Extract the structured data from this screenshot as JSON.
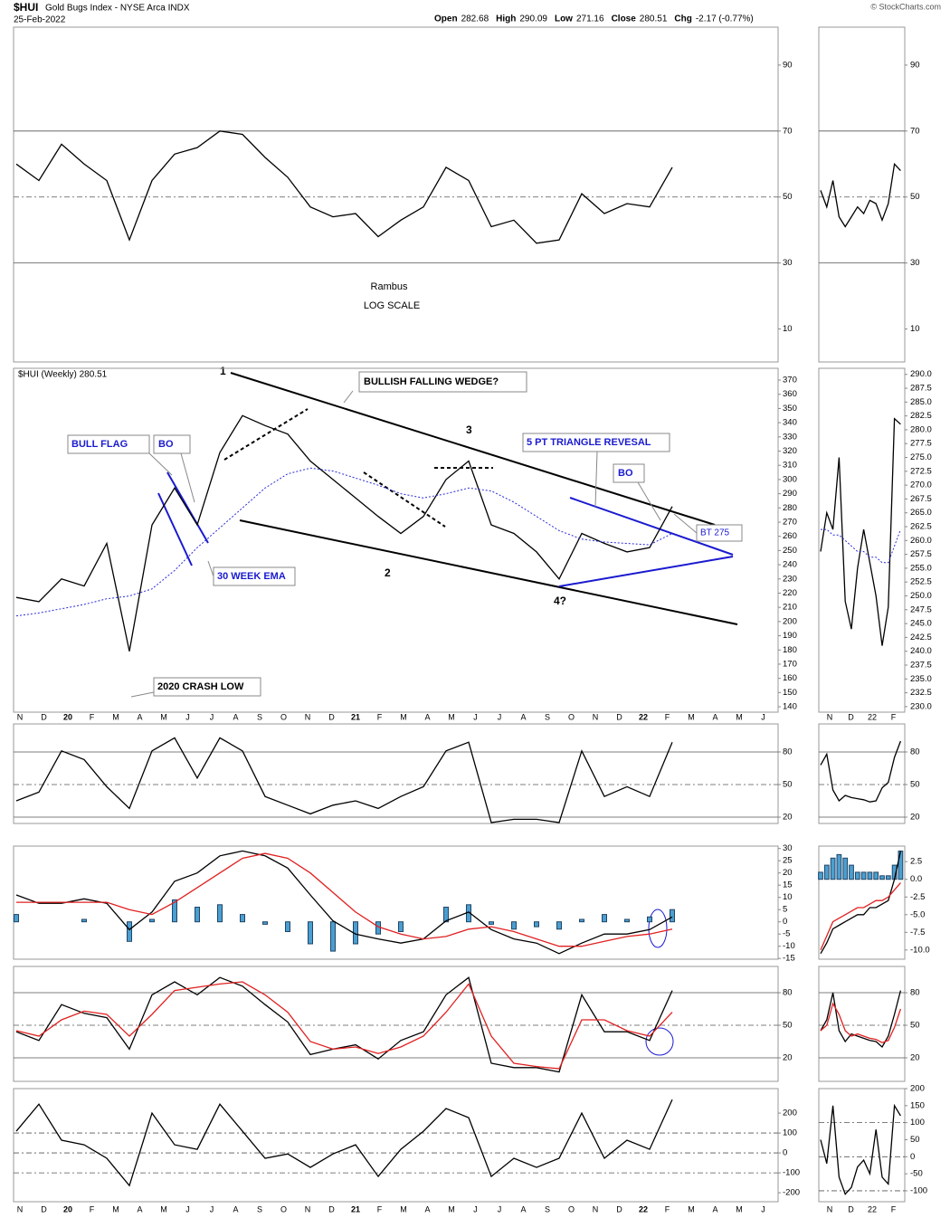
{
  "header": {
    "symbol": "$HUI",
    "name": "Gold Bugs Index - NYSE Arca INDX",
    "date": "25-Feb-2022",
    "copyright": "© StockCharts.com",
    "quote": [
      {
        "label": "Open",
        "value": 282.68
      },
      {
        "label": "High",
        "value": 290.09
      },
      {
        "label": "Low",
        "value": 271.16
      },
      {
        "label": "Close",
        "value": 280.51
      },
      {
        "label": "Chg",
        "value": "-2.17 (-0.77%)"
      }
    ],
    "legend": "$HUI (Weekly) 280.51"
  },
  "annotations": {
    "author": "Rambus",
    "scale": "LOG SCALE",
    "wedge": "BULLISH FALLING WEDGE?",
    "bull_flag": "BULL FLAG",
    "bo1": "BO",
    "ema": "30 WEEK EMA",
    "crash": "2020 CRASH LOW",
    "triangle": "5 PT TRIANGLE REVESAL",
    "bo2": "BO",
    "bt": "BT 275",
    "p1": "1",
    "p2": "2",
    "p3": "3",
    "p4": "4?"
  },
  "x_axis": {
    "months": [
      "N",
      "D",
      "20",
      "F",
      "M",
      "A",
      "M",
      "J",
      "J",
      "A",
      "S",
      "O",
      "N",
      "D",
      "21",
      "F",
      "M",
      "A",
      "M",
      "J",
      "J",
      "A",
      "S",
      "O",
      "N",
      "D",
      "22",
      "F",
      "M",
      "A",
      "M",
      "J"
    ],
    "mini_months": [
      "N",
      "D",
      "22",
      "F"
    ]
  },
  "panels": [
    {
      "ylim": [
        0,
        101.5
      ],
      "yticks": [
        10,
        30,
        50,
        70,
        90
      ],
      "grid": {
        "solid": [
          70,
          30
        ],
        "dashed": [
          50
        ]
      },
      "series": [
        {
          "style": "line",
          "color": "#000000",
          "values": [
            60,
            55,
            66,
            60,
            55,
            37,
            55,
            63,
            65,
            70,
            69,
            62,
            56,
            47,
            44,
            45,
            38,
            43,
            47,
            59,
            55,
            41,
            43,
            36,
            37,
            51,
            45,
            48,
            47,
            59
          ]
        }
      ],
      "mini": {
        "ylim": [
          0,
          101.5
        ],
        "yticks": [
          10,
          30,
          50,
          70,
          90
        ],
        "series": [
          {
            "style": "line",
            "color": "#000000",
            "values": [
              52,
              47,
              55,
              44,
              41,
              44,
              47,
              45,
              49,
              48,
              43,
              48,
              60,
              58
            ]
          }
        ]
      }
    },
    {
      "ylim": [
        136.2,
        378.3
      ],
      "yticks": [
        140,
        150,
        160,
        170,
        180,
        190,
        200,
        210,
        220,
        230,
        240,
        250,
        260,
        270,
        280,
        290,
        300,
        310,
        320,
        330,
        340,
        350,
        360,
        370
      ],
      "grid": {
        "solid": [],
        "dashed": []
      },
      "series": [
        {
          "style": "line",
          "color": "#000000",
          "values": [
            217,
            214,
            230,
            225,
            255,
            179,
            268,
            294,
            268,
            319,
            345,
            338,
            332,
            313,
            300,
            287,
            274,
            262,
            274,
            300,
            313,
            268,
            262,
            249,
            230,
            262,
            255,
            249,
            252,
            281
          ]
        },
        {
          "style": "dotted",
          "color": "#2a2ad8",
          "values": [
            204,
            206,
            209,
            212,
            216,
            218,
            223,
            236,
            252,
            266,
            280,
            294,
            304,
            308,
            306,
            301,
            296,
            290,
            287,
            290,
            294,
            292,
            284,
            274,
            264,
            258,
            256,
            255,
            254,
            262
          ]
        }
      ],
      "mini": {
        "ylim": [
          229,
          291.1
        ],
        "yticks": [
          {
            "value": 230,
            "label": "230.0"
          },
          {
            "value": 232.5,
            "label": "232.5"
          },
          {
            "value": 235,
            "label": "235.0"
          },
          {
            "value": 237.5,
            "label": "237.5"
          },
          {
            "value": 240,
            "label": "240.0"
          },
          {
            "value": 242.5,
            "label": "242.5"
          },
          {
            "value": 245,
            "label": "245.0"
          },
          {
            "value": 247.5,
            "label": "247.5"
          },
          {
            "value": 250,
            "label": "250.0"
          },
          {
            "value": 252.5,
            "label": "252.5"
          },
          {
            "value": 255,
            "label": "255.0"
          },
          {
            "value": 257.5,
            "label": "257.5"
          },
          {
            "value": 260,
            "label": "260.0"
          },
          {
            "value": 262.5,
            "label": "262.5"
          },
          {
            "value": 265,
            "label": "265.0"
          },
          {
            "value": 267.5,
            "label": "267.5"
          },
          {
            "value": 270,
            "label": "270.0"
          },
          {
            "value": 272.5,
            "label": "272.5"
          },
          {
            "value": 275,
            "label": "275.0"
          },
          {
            "value": 277.5,
            "label": "277.5"
          },
          {
            "value": 280,
            "label": "280.0"
          },
          {
            "value": 282.5,
            "label": "282.5"
          },
          {
            "value": 285,
            "label": "285.0"
          },
          {
            "value": 287.5,
            "label": "287.5"
          },
          {
            "value": 290,
            "label": "290.0"
          }
        ],
        "series": [
          {
            "style": "line",
            "color": "#000000",
            "values": [
              258,
              265,
              262,
              275,
              249,
              244,
              255,
              262,
              256,
              250,
              241,
              248,
              282,
              281
            ]
          },
          {
            "style": "dotted",
            "color": "#2a2ad8",
            "values": [
              262,
              262,
              261,
              261,
              260,
              259,
              258,
              258,
              257,
              257,
              256,
              256,
              259,
              262
            ]
          }
        ]
      }
    },
    {
      "ylim": [
        14.2,
        105.8
      ],
      "yticks": [
        20,
        50,
        80
      ],
      "grid": {
        "solid": [
          80,
          20
        ],
        "dashed": [
          50
        ]
      },
      "series": [
        {
          "style": "line",
          "color": "#000000",
          "values": [
            35,
            43,
            81,
            73,
            48,
            28,
            81,
            93,
            56,
            93,
            81,
            39,
            31,
            23,
            31,
            35,
            28,
            39,
            48,
            81,
            89,
            15,
            18,
            18,
            15,
            81,
            39,
            48,
            39,
            89
          ]
        }
      ],
      "mini": {
        "ylim": [
          14.2,
          105.8
        ],
        "yticks": [
          20,
          50,
          80
        ],
        "series": [
          {
            "style": "line",
            "color": "#000000",
            "values": [
              68,
              78,
              45,
              35,
              40,
              38,
              37,
              36,
              34,
              35,
              47,
              52,
              75,
              90
            ]
          }
        ]
      }
    },
    {
      "ylim": [
        -15.3,
        31
      ],
      "yticks": [
        -15,
        -10,
        -5,
        0,
        5,
        10,
        15,
        20,
        25,
        30
      ],
      "grid": {
        "solid": [],
        "dashed": []
      },
      "series": [
        {
          "style": "histogram",
          "color": "#4a9fd0",
          "values": [
            3,
            0,
            0,
            1,
            0,
            -8,
            1,
            9,
            6,
            7,
            3,
            -1,
            -4,
            -9,
            -12,
            -9,
            -5,
            -4,
            0,
            6,
            7,
            -1,
            -3,
            -2,
            -3,
            1,
            3,
            1,
            2,
            5
          ]
        },
        {
          "style": "line",
          "color": "#000000",
          "values": [
            11,
            7.6,
            7.6,
            9.4,
            7.6,
            -3.2,
            4,
            16.6,
            20,
            27,
            29,
            27,
            22,
            11,
            0.4,
            -5,
            -7,
            -8.7,
            -7,
            0.4,
            4,
            -3.2,
            -7,
            -8.7,
            -13,
            -8.7,
            -5,
            -5,
            -3.2,
            2
          ]
        },
        {
          "style": "line",
          "color": "#e02020",
          "values": [
            8,
            8,
            8,
            8,
            8,
            5,
            3,
            8,
            14,
            20,
            26,
            28,
            26,
            20,
            12,
            4,
            -2,
            -5,
            -7,
            -6,
            -3,
            -2,
            -4,
            -7,
            -10,
            -10,
            -8,
            -6,
            -5,
            -3
          ]
        }
      ],
      "mini": {
        "ylim": [
          -11.3,
          4.7
        ],
        "yticks": [
          {
            "value": 2.5,
            "label": "2.5"
          },
          {
            "value": 0,
            "label": "0.0"
          },
          {
            "value": -2.5,
            "label": "-2.5"
          },
          {
            "value": -5,
            "label": "-5.0"
          },
          {
            "value": -7.5,
            "label": "-7.5"
          },
          {
            "value": -10,
            "label": "-10.0"
          }
        ],
        "series": [
          {
            "style": "histogram",
            "color": "#4a9fd0",
            "values": [
              1,
              2,
              3,
              3.5,
              3,
              2,
              1,
              1,
              1,
              1,
              0.5,
              0.5,
              2,
              4
            ]
          },
          {
            "style": "line",
            "color": "#000000",
            "values": [
              -10.5,
              -9,
              -7,
              -6.5,
              -6,
              -5.5,
              -5,
              -5,
              -4,
              -4,
              -3.5,
              -3,
              0,
              4
            ]
          },
          {
            "style": "line",
            "color": "#e02020",
            "values": [
              -10,
              -8,
              -6,
              -5.5,
              -5,
              -4.5,
              -4,
              -4,
              -3.5,
              -3,
              -3,
              -2.5,
              -1.5,
              -0.5
            ]
          }
        ]
      }
    },
    {
      "ylim": [
        -1.7,
        104.2
      ],
      "yticks": [
        20,
        50,
        80
      ],
      "grid": {
        "solid": [
          80,
          20
        ],
        "dashed": [
          50
        ]
      },
      "series": [
        {
          "style": "line",
          "color": "#000000",
          "values": [
            44,
            36,
            69,
            61,
            57,
            28,
            78,
            90,
            78,
            94,
            86,
            69,
            53,
            23,
            28,
            32,
            19,
            36,
            44,
            78,
            94,
            15,
            11,
            11,
            7,
            78,
            44,
            44,
            36,
            82
          ]
        },
        {
          "style": "line",
          "color": "#e02020",
          "values": [
            45,
            40,
            55,
            63,
            60,
            40,
            60,
            82,
            85,
            88,
            90,
            78,
            62,
            35,
            28,
            30,
            24,
            30,
            40,
            62,
            88,
            40,
            15,
            12,
            10,
            55,
            55,
            45,
            40,
            62
          ]
        }
      ],
      "mini": {
        "ylim": [
          -1.7,
          104.2
        ],
        "yticks": [
          20,
          50,
          80
        ],
        "series": [
          {
            "style": "line",
            "color": "#000000",
            "values": [
              45,
              55,
              80,
              45,
              35,
              42,
              40,
              38,
              36,
              35,
              30,
              40,
              60,
              82
            ]
          },
          {
            "style": "line",
            "color": "#e02020",
            "values": [
              45,
              50,
              70,
              60,
              45,
              40,
              42,
              40,
              38,
              37,
              34,
              36,
              48,
              65
            ]
          }
        ]
      }
    },
    {
      "ylim": [
        -245,
        323
      ],
      "yticks": [
        -200,
        -100,
        0,
        100,
        200
      ],
      "grid": {
        "solid": [],
        "dashed": [
          100,
          0,
          -100
        ]
      },
      "series": [
        {
          "style": "line",
          "color": "#000000",
          "values": [
            109,
            245,
            64,
            41,
            -27,
            -164,
            200,
            41,
            18,
            245,
            109,
            -27,
            -5,
            -73,
            -5,
            41,
            -118,
            18,
            109,
            223,
            177,
            -118,
            -27,
            -73,
            -27,
            200,
            -27,
            64,
            18,
            268
          ]
        }
      ],
      "mini": {
        "ylim": [
          -132,
          200
        ],
        "yticks": [
          -100,
          -50,
          0,
          50,
          100,
          150,
          200
        ],
        "series": [
          {
            "style": "line",
            "color": "#000000",
            "values": [
              50,
              -20,
              150,
              -60,
              -110,
              -90,
              -30,
              -10,
              -50,
              80,
              -60,
              -80,
              150,
              120
            ]
          }
        ]
      }
    }
  ]
}
